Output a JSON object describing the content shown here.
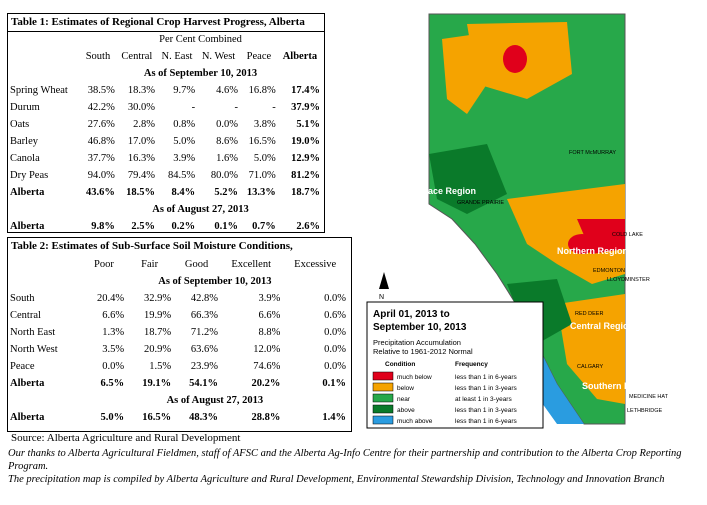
{
  "table1": {
    "caption": "Table 1: Estimates of Regional Crop Harvest Progress, Alberta",
    "group_header": "Per Cent Combined",
    "columns": [
      "South",
      "Central",
      "N. East",
      "N. West",
      "Peace",
      "Alberta"
    ],
    "period1": "As of September 10, 2013",
    "rows": [
      {
        "label": "Spring Wheat",
        "values": [
          "38.5%",
          "18.3%",
          "9.7%",
          "4.6%",
          "16.8%",
          "17.4%"
        ]
      },
      {
        "label": "Durum",
        "values": [
          "42.2%",
          "30.0%",
          "-",
          "-",
          "-",
          "37.9%"
        ]
      },
      {
        "label": "Oats",
        "values": [
          "27.6%",
          "2.8%",
          "0.8%",
          "0.0%",
          "3.8%",
          "5.1%"
        ]
      },
      {
        "label": "Barley",
        "values": [
          "46.8%",
          "17.0%",
          "5.0%",
          "8.6%",
          "16.5%",
          "19.0%"
        ]
      },
      {
        "label": "Canola",
        "values": [
          "37.7%",
          "16.3%",
          "3.9%",
          "1.6%",
          "5.0%",
          "12.9%"
        ]
      },
      {
        "label": "Dry Peas",
        "values": [
          "94.0%",
          "79.4%",
          "84.5%",
          "80.0%",
          "71.0%",
          "81.2%"
        ]
      }
    ],
    "total1": {
      "label": "Alberta",
      "values": [
        "43.6%",
        "18.5%",
        "8.4%",
        "5.2%",
        "13.3%",
        "18.7%"
      ]
    },
    "period2": "As of August 27, 2013",
    "total2": {
      "label": "Alberta",
      "values": [
        "9.8%",
        "2.5%",
        "0.2%",
        "0.1%",
        "0.7%",
        "2.6%"
      ]
    }
  },
  "table2": {
    "caption": "Table 2: Estimates of Sub-Surface Soil Moisture Conditions,",
    "columns": [
      "Poor",
      "Fair",
      "Good",
      "Excellent",
      "Excessive"
    ],
    "period1": "As of September 10, 2013",
    "rows": [
      {
        "label": "South",
        "values": [
          "20.4%",
          "32.9%",
          "42.8%",
          "3.9%",
          "0.0%"
        ]
      },
      {
        "label": "Central",
        "values": [
          "6.6%",
          "19.9%",
          "66.3%",
          "6.6%",
          "0.6%"
        ]
      },
      {
        "label": "North East",
        "values": [
          "1.3%",
          "18.7%",
          "71.2%",
          "8.8%",
          "0.0%"
        ]
      },
      {
        "label": "North West",
        "values": [
          "3.5%",
          "20.9%",
          "63.6%",
          "12.0%",
          "0.0%"
        ]
      },
      {
        "label": "Peace",
        "values": [
          "0.0%",
          "1.5%",
          "23.9%",
          "74.6%",
          "0.0%"
        ]
      }
    ],
    "total1": {
      "label": "Alberta",
      "values": [
        "6.5%",
        "19.1%",
        "54.1%",
        "20.2%",
        "0.1%"
      ]
    },
    "period2": "As of August 27, 2013",
    "total2": {
      "label": "Alberta",
      "values": [
        "5.0%",
        "16.5%",
        "48.3%",
        "28.8%",
        "1.4%"
      ]
    },
    "source": "Source: Alberta Agriculture and Rural Development"
  },
  "footnote": {
    "line1": "Our thanks to Alberta Agricultural Fieldmen, staff of AFSC and the Alberta Ag-Info Centre for their partnership and contribution to the Alberta Crop Reporting Program.",
    "line2": "The precipitation map is compiled by Alberta Agriculture and Rural Development, Environmental Stewardship Division, Technology and Innovation Branch"
  },
  "map": {
    "title_line1": "April 01, 2013 to",
    "title_line2": "September 10, 2013",
    "subtitle_line1": "Precipitation Accumulation",
    "subtitle_line2": "Relative to 1961-2012 Normal",
    "north_label": "N",
    "regions": [
      "Peace Region",
      "Northern Region",
      "Central Region",
      "Southern Region"
    ],
    "cities": [
      "FORT McMURRAY",
      "GRANDE PRAIRIE",
      "COLD LAKE",
      "EDMONTON",
      "LLOYDMINSTER",
      "RED DEER",
      "CALGARY",
      "MEDICINE HAT",
      "LETHBRIDGE"
    ],
    "legend_headers": [
      "Condition",
      "Frequency"
    ],
    "legend": [
      {
        "condition": "much below",
        "frequency": "less than 1 in 6-years",
        "color": "#e0001b"
      },
      {
        "condition": "below",
        "frequency": "less than 1 in 3-years",
        "color": "#f5a300"
      },
      {
        "condition": "near",
        "frequency": "at least 1 in 3-years",
        "color": "#27a84a"
      },
      {
        "condition": "above",
        "frequency": "less than 1 in 3-years",
        "color": "#0a7a2a"
      },
      {
        "condition": "much above",
        "frequency": "less than 1 in 6-years",
        "color": "#2a9ce0"
      }
    ]
  }
}
